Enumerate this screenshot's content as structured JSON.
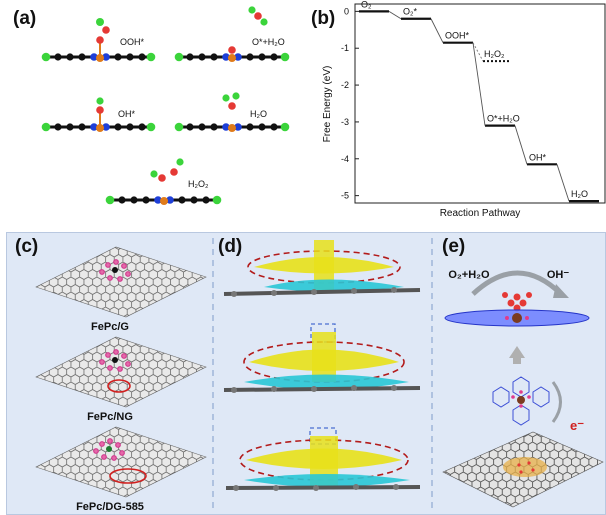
{
  "panel_a": {
    "label": "(a)",
    "species": [
      "OOH*",
      "O*+H₂O",
      "OH*",
      "H₂O",
      "H₂O₂"
    ]
  },
  "panel_b": {
    "label": "(b)"
  },
  "chart_data": {
    "type": "line",
    "title": "",
    "xlabel": "Reaction Pathway",
    "ylabel": "Free Energy (eV)",
    "ylim": [
      -5.2,
      0.2
    ],
    "yticks": [
      0,
      -1,
      -2,
      -3,
      -4,
      -5
    ],
    "states": [
      "O₂",
      "O₂*",
      "OOH*",
      "O*+H₂O",
      "OH*",
      "H₂O"
    ],
    "values": [
      0.0,
      -0.2,
      -0.85,
      -3.1,
      -4.15,
      -5.15
    ],
    "branch": {
      "from": "OOH*",
      "label": "H₂O₂",
      "value": -1.35
    }
  },
  "panel_c": {
    "label": "(c)",
    "captions": [
      "FePc/G",
      "FePc/NG",
      "FePc/DG-585"
    ]
  },
  "panel_d": {
    "label": "(d)"
  },
  "panel_e": {
    "label": "(e)",
    "reactant": "O₂+H₂O",
    "product": "OH⁻",
    "electron": "e⁻"
  },
  "colors": {
    "bottom_bg": "#dfe8f6",
    "fe_red": "#c62828",
    "n_blue": "#1e3fd8",
    "c_gray": "#444444",
    "h_green": "#3bd43b",
    "dash_red": "#b31b1b",
    "iso_yellow": "#e8e11a",
    "iso_cyan": "#29c7d6"
  }
}
